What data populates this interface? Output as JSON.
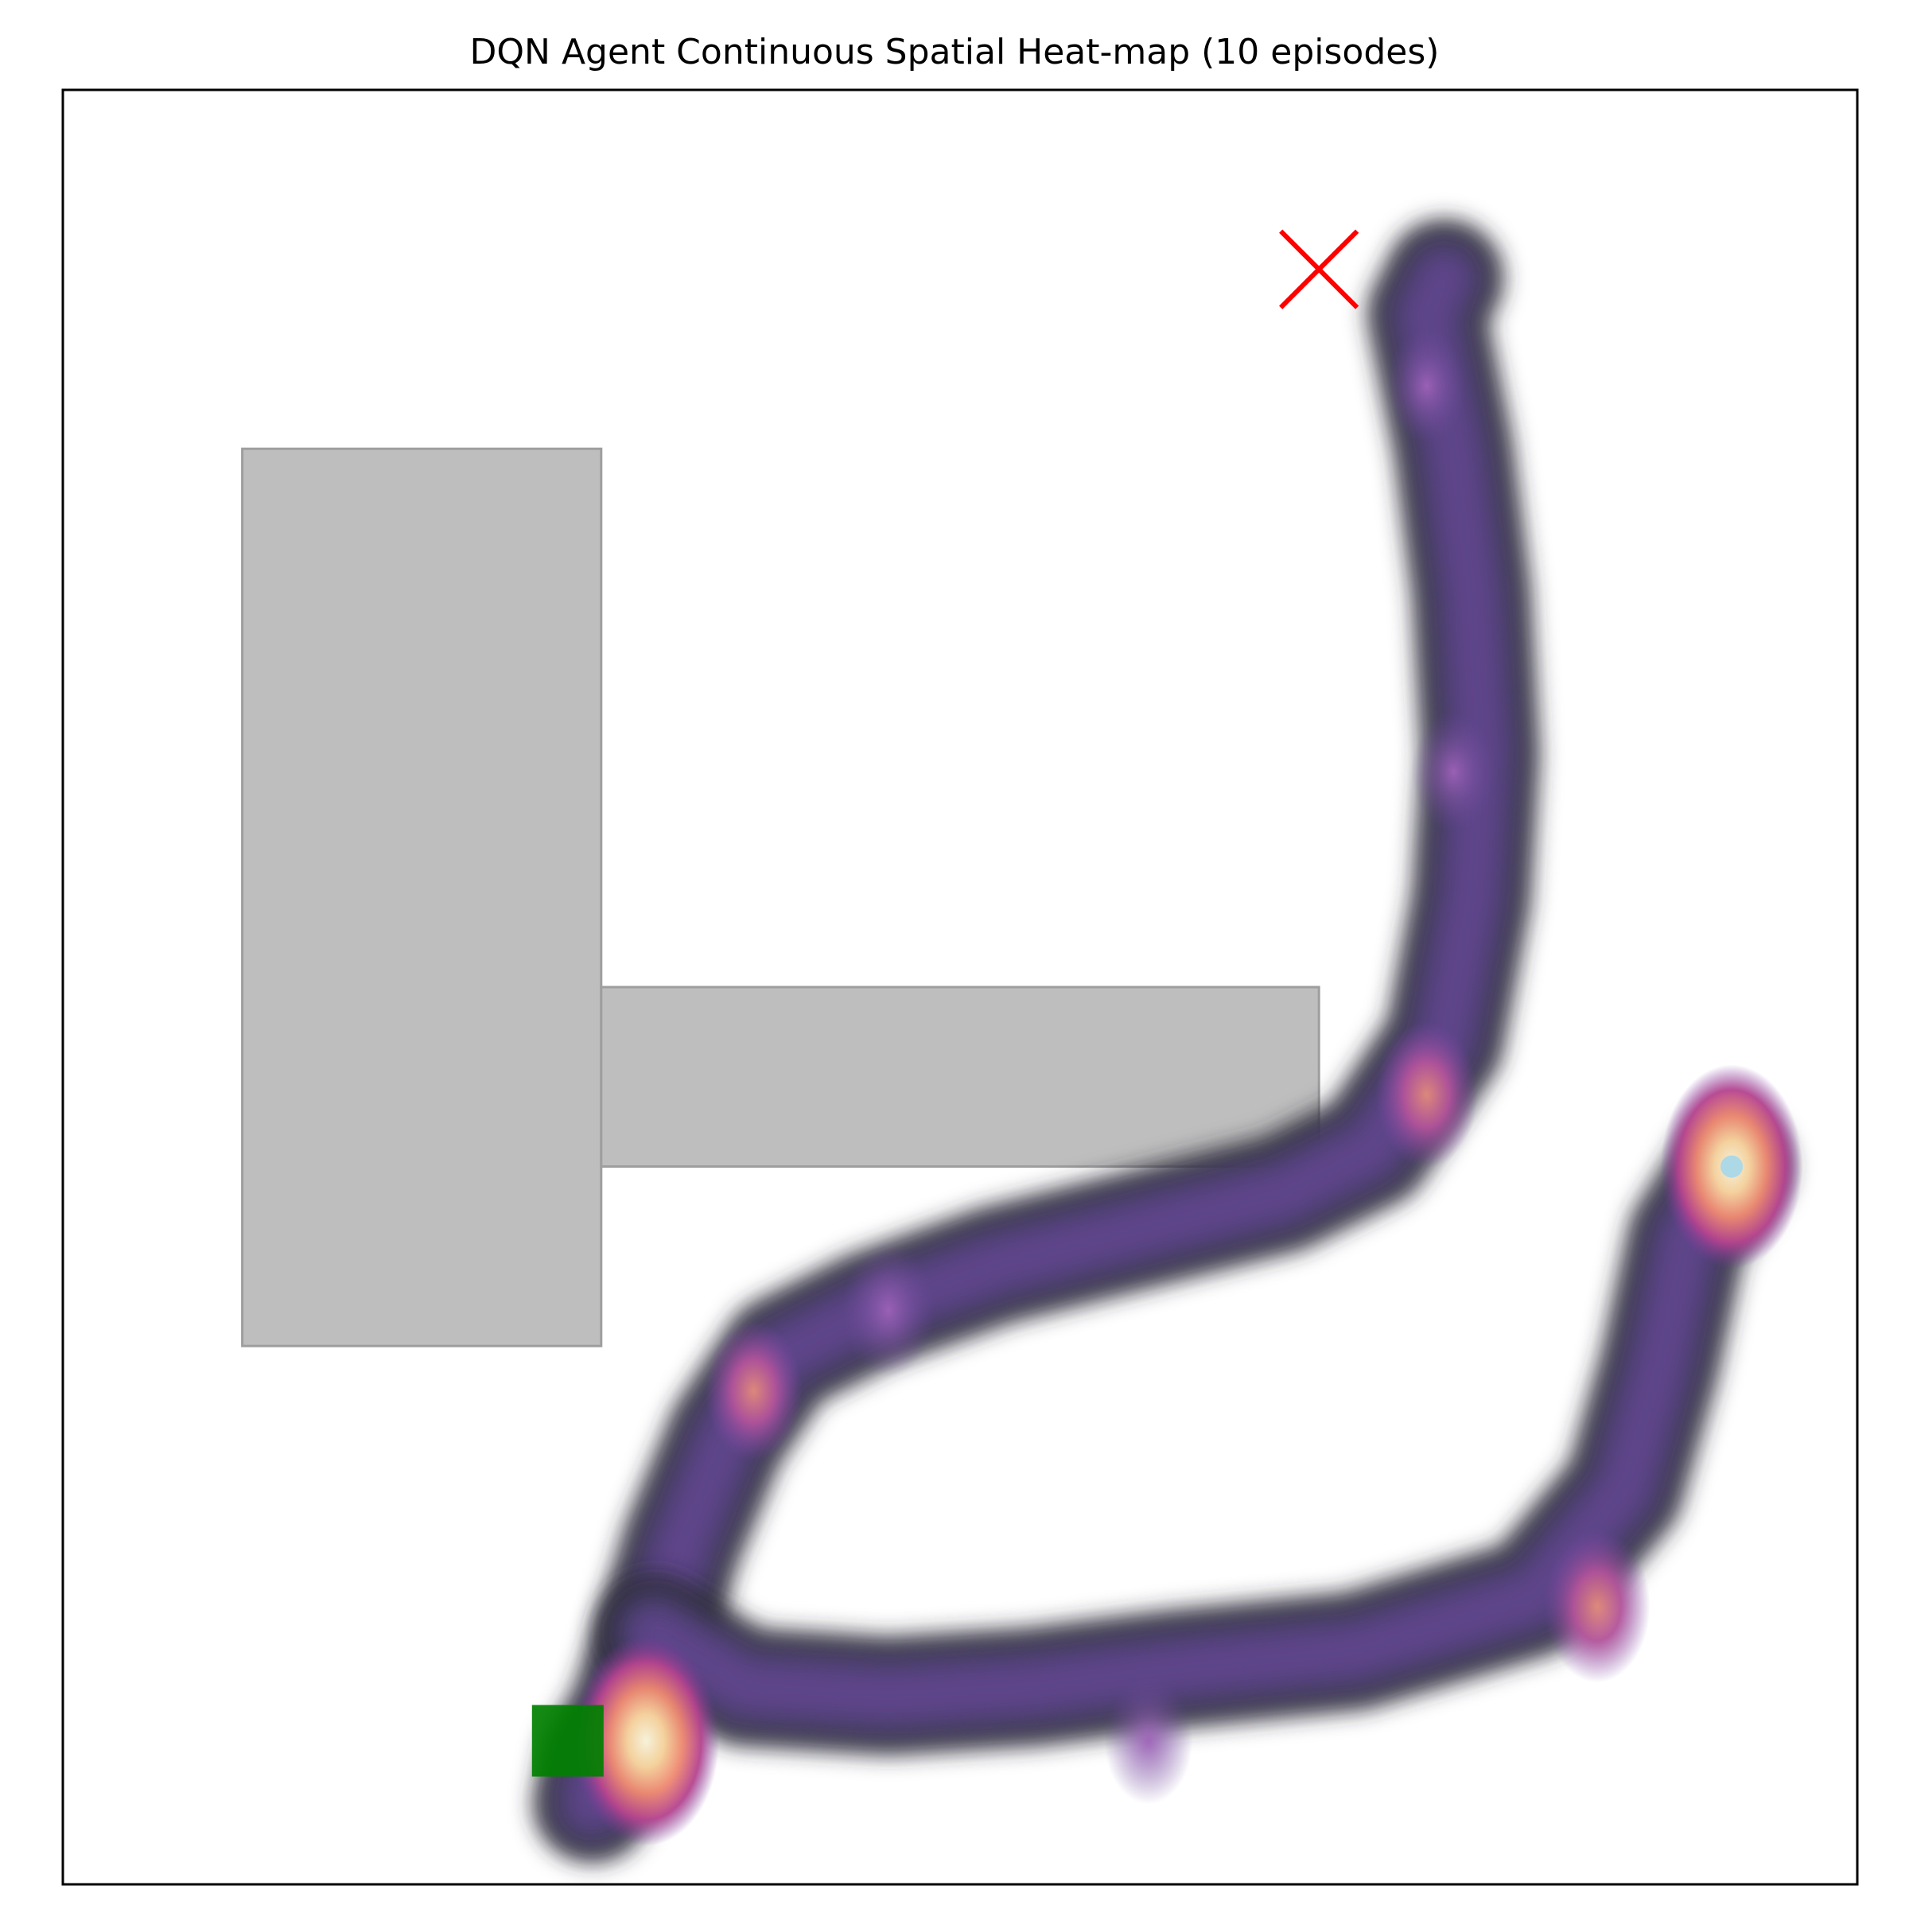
{
  "chart_data": {
    "type": "heatmap",
    "title": "DQN Agent Continuous Spatial Heat-map (10 episodes)",
    "xlim": [
      0,
      10
    ],
    "ylim": [
      0,
      10
    ],
    "grid": false,
    "colormap": "magma",
    "obstacles": [
      {
        "name": "obstacle-tall",
        "x": [
          1.0,
          3.0
        ],
        "y": [
          3.0,
          8.0
        ]
      },
      {
        "name": "obstacle-wide",
        "x": [
          3.0,
          7.0
        ],
        "y": [
          4.0,
          5.0
        ]
      }
    ],
    "start": {
      "x": 3.0,
      "y": 0.8
    },
    "goal": {
      "x": 9.3,
      "y": 4.0
    },
    "failure_marker": {
      "x": 7.0,
      "y": 9.0
    },
    "trajectory": [
      [
        2.95,
        0.45
      ],
      [
        3.0,
        0.7
      ],
      [
        3.15,
        0.95
      ],
      [
        3.3,
        1.4
      ],
      [
        3.45,
        1.9
      ],
      [
        3.7,
        2.5
      ],
      [
        4.0,
        2.95
      ],
      [
        4.5,
        3.2
      ],
      [
        5.2,
        3.45
      ],
      [
        6.0,
        3.65
      ],
      [
        6.8,
        3.85
      ],
      [
        7.3,
        4.1
      ],
      [
        7.7,
        4.7
      ],
      [
        7.85,
        5.5
      ],
      [
        7.9,
        6.3
      ],
      [
        7.85,
        7.2
      ],
      [
        7.75,
        8.0
      ],
      [
        7.6,
        8.75
      ],
      [
        7.7,
        8.95
      ]
    ],
    "trajectory_return": [
      [
        3.3,
        1.4
      ],
      [
        3.8,
        1.1
      ],
      [
        4.6,
        1.05
      ],
      [
        5.4,
        1.1
      ],
      [
        6.2,
        1.2
      ],
      [
        7.2,
        1.3
      ],
      [
        8.2,
        1.6
      ],
      [
        8.7,
        2.2
      ],
      [
        8.9,
        2.9
      ],
      [
        9.05,
        3.6
      ],
      [
        9.3,
        4.0
      ]
    ],
    "hotspots": [
      {
        "x": 3.25,
        "y": 0.8,
        "density": 1.0
      },
      {
        "x": 9.3,
        "y": 4.0,
        "density": 0.95
      },
      {
        "x": 8.55,
        "y": 1.55,
        "density": 0.55
      },
      {
        "x": 7.6,
        "y": 4.4,
        "density": 0.5
      },
      {
        "x": 3.85,
        "y": 2.75,
        "density": 0.45
      },
      {
        "x": 4.6,
        "y": 3.2,
        "density": 0.4
      },
      {
        "x": 6.05,
        "y": 0.8,
        "density": 0.35
      },
      {
        "x": 7.75,
        "y": 6.2,
        "density": 0.3
      },
      {
        "x": 7.6,
        "y": 8.35,
        "density": 0.25
      }
    ]
  },
  "colors": {
    "obstacle_fill": "#bebebe",
    "obstacle_edge": "#9e9e9e",
    "start_marker": "#008000",
    "goal_marker": "#add8e6",
    "failure_marker": "#ff0000",
    "frame": "#000000"
  }
}
